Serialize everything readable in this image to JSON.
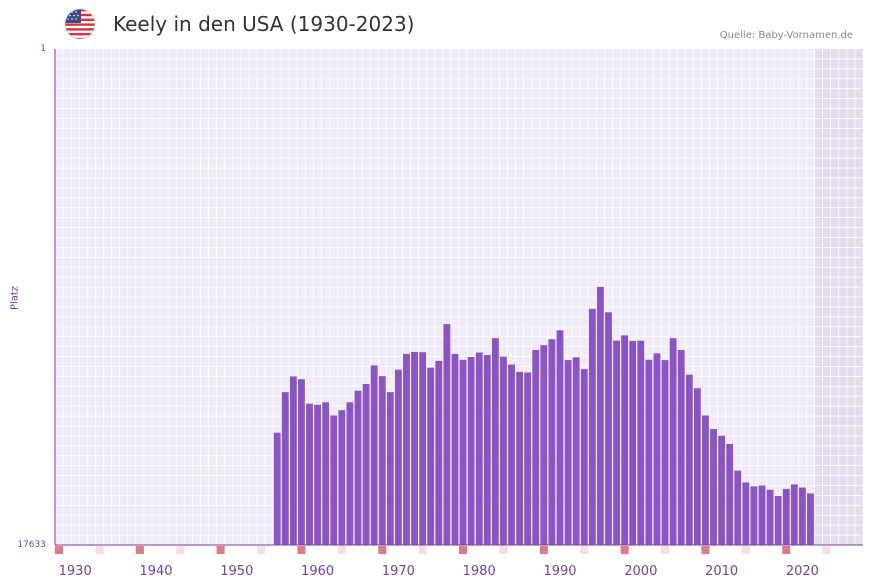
{
  "title": "Keely in den USA (1930-2023)",
  "source": "Quelle: Baby-Vornamen.de",
  "flag_icon": "us-flag-icon",
  "colors": {
    "bar": "#8b54c6",
    "axis": "#7a3f9a",
    "plot_bg": "#f0ebf8",
    "future_bg": "#e2dcec",
    "grid": "#ffffff",
    "decade_marker": "#e07a86",
    "lustrum_marker": "#f6dde2"
  },
  "chart_data": {
    "type": "bar",
    "title": "Keely in den USA (1930-2023)",
    "ylabel": "Platz",
    "y_inverted": true,
    "ylim": [
      1,
      17633
    ],
    "y_tick_labels": [
      "1",
      "17633"
    ],
    "x_range": [
      1928,
      2028
    ],
    "x_tick_labels": [
      "1930",
      "1940",
      "1950",
      "1960",
      "1970",
      "1980",
      "1990",
      "2000",
      "2010",
      "2020"
    ],
    "x_tick_values": [
      1930,
      1940,
      1950,
      1960,
      1970,
      1980,
      1990,
      2000,
      2010,
      2020
    ],
    "future_shade_start": 2022,
    "years": [
      1955,
      1956,
      1957,
      1958,
      1959,
      1960,
      1961,
      1962,
      1963,
      1964,
      1965,
      1966,
      1967,
      1968,
      1969,
      1970,
      1971,
      1972,
      1973,
      1974,
      1975,
      1976,
      1977,
      1978,
      1979,
      1980,
      1981,
      1982,
      1983,
      1984,
      1985,
      1986,
      1987,
      1988,
      1989,
      1990,
      1991,
      1992,
      1993,
      1994,
      1995,
      1996,
      1997,
      1998,
      1999,
      2000,
      2001,
      2002,
      2003,
      2004,
      2005,
      2006,
      2007,
      2008,
      2009,
      2010,
      2011,
      2012,
      2013,
      2014,
      2015,
      2016,
      2017,
      2018,
      2019,
      2020,
      2021
    ],
    "ranks": [
      13640,
      12200,
      11640,
      11740,
      12610,
      12650,
      12560,
      13030,
      12840,
      12560,
      12150,
      11910,
      11250,
      11630,
      12200,
      11400,
      10840,
      10770,
      10780,
      11330,
      11090,
      9780,
      10840,
      11050,
      10950,
      10790,
      10880,
      10280,
      10940,
      11220,
      11480,
      11500,
      10700,
      10530,
      10320,
      10000,
      11060,
      10960,
      11380,
      9240,
      8460,
      9360,
      10370,
      10180,
      10380,
      10370,
      11050,
      10820,
      11060,
      10280,
      10700,
      11580,
      12060,
      13030,
      13510,
      13750,
      14040,
      14990,
      15410,
      15550,
      15520,
      15670,
      15890,
      15640,
      15480,
      15590,
      15800
    ]
  }
}
